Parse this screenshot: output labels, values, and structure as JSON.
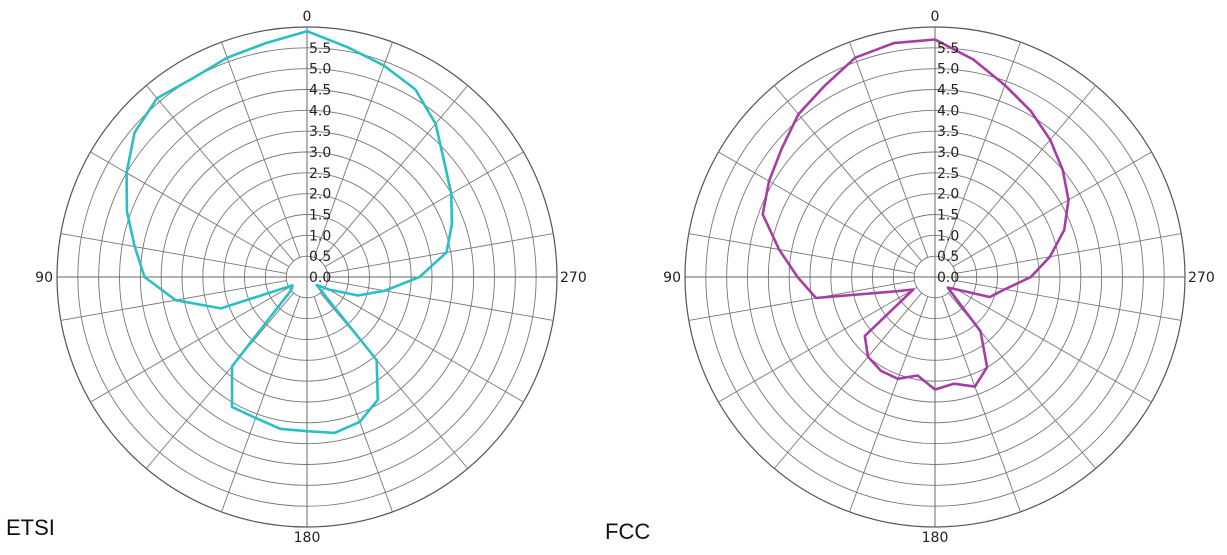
{
  "chart_data": [
    {
      "type": "polar-line",
      "caption": "ETSI",
      "color": "#2ABFC4",
      "radial_ticks": [
        "0.0",
        "0.5",
        "1.0",
        "1.5",
        "2.0",
        "2.5",
        "3.0",
        "3.5",
        "4.0",
        "4.5",
        "5.0",
        "5.5"
      ],
      "angle_labels": [
        {
          "angle": 0,
          "label": "0"
        },
        {
          "angle": 90,
          "label": "90"
        },
        {
          "angle": 180,
          "label": "180"
        },
        {
          "angle": 270,
          "label": "270"
        }
      ],
      "rmax": 6.0,
      "angle_step": 20,
      "series": [
        {
          "theta": [
            0,
            10,
            20,
            30,
            40,
            50,
            60,
            70,
            80,
            90,
            100,
            110,
            120,
            130,
            140,
            150,
            160,
            170,
            180,
            190,
            200,
            210,
            220,
            230,
            240,
            250,
            260,
            270,
            280,
            290,
            300,
            310,
            320,
            330,
            340,
            350
          ],
          "r": [
            5.9,
            5.7,
            5.6,
            5.5,
            5.6,
            5.4,
            5.0,
            4.6,
            4.2,
            3.9,
            3.2,
            2.2,
            0.4,
            0.5,
            2.8,
            3.6,
            3.6,
            3.7,
            3.7,
            3.8,
            3.7,
            3.4,
            2.6,
            0.3,
            0.6,
            1.3,
            1.9,
            2.7,
            3.4,
            3.7,
            4.0,
            4.3,
            4.8,
            5.2,
            5.4,
            5.6
          ]
        }
      ]
    },
    {
      "type": "polar-line",
      "caption": "FCC",
      "color": "#A63DA6",
      "radial_ticks": [
        "0.0",
        "0.5",
        "1.0",
        "1.5",
        "2.0",
        "2.5",
        "3.0",
        "3.5",
        "4.0",
        "4.5",
        "5.0",
        "5.5"
      ],
      "angle_labels": [
        {
          "angle": 0,
          "label": "0"
        },
        {
          "angle": 90,
          "label": "90"
        },
        {
          "angle": 180,
          "label": "180"
        },
        {
          "angle": 270,
          "label": "270"
        }
      ],
      "rmax": 6.0,
      "angle_step": 20,
      "series": [
        {
          "theta": [
            0,
            10,
            20,
            30,
            40,
            50,
            60,
            70,
            80,
            90,
            100,
            110,
            120,
            130,
            140,
            150,
            160,
            170,
            180,
            190,
            200,
            210,
            220,
            230,
            240,
            250,
            260,
            270,
            280,
            290,
            300,
            310,
            320,
            330,
            340,
            350
          ],
          "r": [
            5.7,
            5.7,
            5.6,
            5.3,
            5.1,
            4.8,
            4.6,
            4.4,
            3.8,
            3.3,
            2.9,
            1.0,
            0.6,
            2.2,
            2.5,
            2.6,
            2.6,
            2.4,
            2.7,
            2.6,
            2.8,
            2.5,
            1.7,
            0.4,
            0.6,
            1.4,
            1.7,
            2.3,
            2.8,
            3.3,
            3.7,
            4.0,
            4.3,
            4.6,
            4.9,
            5.3
          ]
        }
      ]
    }
  ]
}
